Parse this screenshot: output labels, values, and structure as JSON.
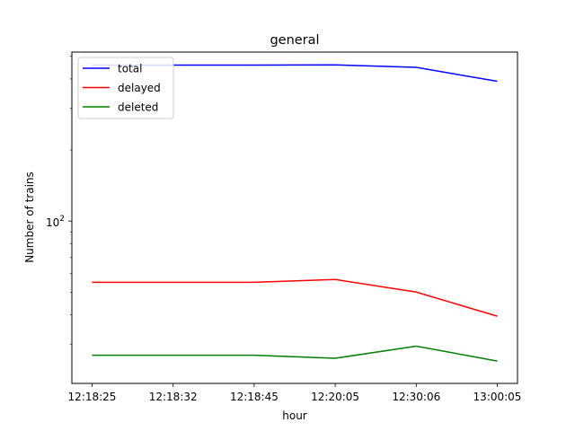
{
  "chart_data": {
    "type": "line",
    "title": "general",
    "xlabel": "hour",
    "ylabel": "Number of trains",
    "yscale": "log",
    "ylim": [
      20.5,
      520
    ],
    "y_tick_labels": [
      {
        "value": 100,
        "base": "10",
        "exp": "2"
      }
    ],
    "categories": [
      "12:18:25",
      "12:18:32",
      "12:18:45",
      "12:20:05",
      "12:30:06",
      "13:00:05"
    ],
    "x_tick_labels": [
      "12:18:25",
      "12:18:32",
      "12:18:45",
      "12:20:05",
      "12:30:06",
      "13:00:05"
    ],
    "x_values": [
      0,
      1,
      2,
      3,
      4,
      5
    ],
    "grid": false,
    "legend_position": "top-left",
    "series": [
      {
        "name": "total",
        "color": "#0000ff",
        "values": [
          458,
          458,
          458,
          459,
          448,
          391
        ]
      },
      {
        "name": "delayed",
        "color": "#ff0000",
        "values": [
          55,
          55,
          55,
          56.5,
          50,
          39.5
        ]
      },
      {
        "name": "deleted",
        "color": "#008000",
        "values": [
          27,
          27,
          27,
          26.2,
          29.5,
          25.5
        ]
      }
    ]
  }
}
